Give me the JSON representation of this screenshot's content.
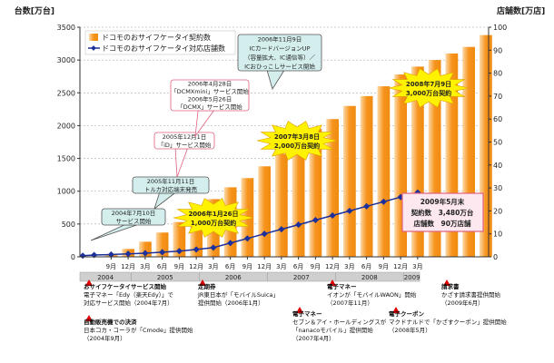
{
  "chart_data": {
    "type": "bar+line",
    "title": "",
    "ylabel_left": "台数[万台]",
    "ylabel_right": "店舗数[万店]",
    "ylim_left": [
      0,
      3500
    ],
    "yticks_left": [
      0,
      500,
      1000,
      1500,
      2000,
      2500,
      3000,
      3500
    ],
    "ylim_right": [
      0,
      100
    ],
    "yticks_right": [
      0,
      10,
      20,
      30,
      40,
      50,
      60,
      70,
      80,
      90,
      100
    ],
    "months": [
      "",
      "",
      "",
      "",
      "",
      "9月",
      "",
      "",
      "12月",
      "",
      "",
      "3月",
      "",
      "",
      "6月",
      "",
      "",
      "9月",
      "",
      "",
      "12月",
      "",
      "",
      "3月",
      "",
      "",
      "6月",
      "",
      "",
      "9月",
      "",
      "",
      "12月",
      "",
      "",
      "3月",
      "",
      "",
      "6月",
      "",
      "",
      "9月",
      "",
      "",
      "12月",
      "",
      "",
      "3月",
      "",
      "",
      "6月",
      "",
      "",
      "9月",
      "",
      "",
      "12月",
      "",
      "",
      "3月",
      "",
      "",
      "6月",
      "",
      "",
      "9月",
      "",
      "",
      "12月",
      "",
      "",
      "3月"
    ],
    "month_tick_labels": [
      {
        "i": 5,
        "t": "9月"
      },
      {
        "i": 8,
        "t": "12月"
      },
      {
        "i": 11,
        "t": "3月"
      },
      {
        "i": 14,
        "t": "6月"
      },
      {
        "i": 17,
        "t": "9月"
      },
      {
        "i": 20,
        "t": "12月"
      },
      {
        "i": 23,
        "t": "3月"
      },
      {
        "i": 26,
        "t": "6月"
      },
      {
        "i": 29,
        "t": "9月"
      },
      {
        "i": 32,
        "t": "12月"
      },
      {
        "i": 35,
        "t": "3月"
      },
      {
        "i": 38,
        "t": "6月"
      },
      {
        "i": 41,
        "t": "9月"
      },
      {
        "i": 44,
        "t": "12月"
      },
      {
        "i": 47,
        "t": "3月"
      },
      {
        "i": 50,
        "t": "6月"
      },
      {
        "i": 53,
        "t": "9月"
      },
      {
        "i": 56,
        "t": "12月"
      },
      {
        "i": 59,
        "t": "3月"
      }
    ],
    "years": [
      {
        "label": "2004",
        "start": 0,
        "end": 9
      },
      {
        "label": "2005",
        "start": 9,
        "end": 21
      },
      {
        "label": "2006",
        "start": 21,
        "end": 33
      },
      {
        "label": "2007",
        "start": 33,
        "end": 45
      },
      {
        "label": "2008",
        "start": 45,
        "end": 57
      },
      {
        "label": "2009",
        "start": 57,
        "end": 60
      }
    ],
    "series": [
      {
        "name": "ドコモのおサイフケータイ契約数",
        "type": "bar",
        "color": "#f7941d",
        "points": [
          [
            5,
            25
          ],
          [
            8,
            120
          ],
          [
            11,
            230
          ],
          [
            14,
            370
          ],
          [
            17,
            530
          ],
          [
            20,
            700
          ],
          [
            23,
            880
          ],
          [
            26,
            1060
          ],
          [
            29,
            1200
          ],
          [
            32,
            1380
          ],
          [
            35,
            1570
          ],
          [
            38,
            1760
          ],
          [
            41,
            1950
          ],
          [
            44,
            2100
          ],
          [
            47,
            2300
          ],
          [
            50,
            2450
          ],
          [
            53,
            2600
          ],
          [
            56,
            2780
          ],
          [
            59,
            2900
          ],
          [
            62,
            3000
          ],
          [
            65,
            3100
          ],
          [
            68,
            3200
          ],
          [
            71,
            3380
          ]
        ]
      },
      {
        "name": "ドコモのおサイフケータイ対応店舗数",
        "type": "line",
        "color": "#1c2f9a",
        "points": [
          [
            0,
            0.5
          ],
          [
            2,
            0.8
          ],
          [
            5,
            1
          ],
          [
            8,
            1.3
          ],
          [
            11,
            1.6
          ],
          [
            14,
            2
          ],
          [
            17,
            2.5
          ],
          [
            20,
            3.2
          ],
          [
            23,
            4
          ],
          [
            26,
            6
          ],
          [
            29,
            8
          ],
          [
            32,
            10
          ],
          [
            35,
            12
          ],
          [
            38,
            14
          ],
          [
            41,
            16
          ],
          [
            44,
            18
          ],
          [
            47,
            20
          ],
          [
            50,
            22
          ],
          [
            53,
            24
          ],
          [
            56,
            26
          ],
          [
            59,
            28
          ]
        ]
      }
    ],
    "callouts": [
      {
        "lines": [
          "2004年7月10日",
          "サービス開始"
        ],
        "style": "teal"
      },
      {
        "lines": [
          "2005年11月11日",
          "トルカ対応端末発売"
        ],
        "style": "teal"
      },
      {
        "lines": [
          "2005年12月1日",
          "「iD」サービス開始"
        ],
        "style": "pink"
      },
      {
        "lines": [
          "2006年4月28日",
          "「DCMXmini」サービス開始",
          "2006年5月26日",
          "「DCMX」サービス開始"
        ],
        "style": "pink"
      },
      {
        "lines": [
          "2006年11月9日",
          "ICカードバージョンUP",
          "（容量拡大、IC通信等）／",
          "ICおひっこしサービス開始"
        ],
        "style": "teal"
      }
    ],
    "bursts": [
      {
        "lines": [
          "2006年1月26日",
          "1,000万台契約"
        ]
      },
      {
        "lines": [
          "2007年3月8日",
          "2,000万台契約"
        ]
      },
      {
        "lines": [
          "2008年7月9日",
          "3,000万台契約"
        ]
      }
    ],
    "summary_box": {
      "lines": [
        "2009年5月末",
        "契約数　3,480万台",
        "店舗数　90万店舗"
      ]
    },
    "events": [
      {
        "lines": [
          "おサイフケータイサービス開始",
          "電子マネー「Edy（楽天Edy）」で",
          "対応サービス開始（2004年7月）"
        ]
      },
      {
        "lines": [
          "自動販売機での決済",
          "日本コカ・コーラが「Cmode」提供開始",
          "（2004年9月）"
        ]
      },
      {
        "lines": [
          "定期券",
          "JR東日本が「モバイルSuica」",
          "提供開始（2006年1月）"
        ]
      },
      {
        "lines": [
          "電子マネー",
          "セブン＆アイ・ホールディングスが",
          "「nanacoモバイル」提供開始",
          "（2007年4月）"
        ]
      },
      {
        "lines": [
          "電子マネー",
          "イオンが「モバイルWAON」開始",
          "（2007年11月）"
        ]
      },
      {
        "lines": [
          "電子クーポン",
          "マクドナルドで「かざすクーポン」提供開始",
          "（2008年5月）"
        ]
      },
      {
        "lines": [
          "請求書",
          "かざす請求書提供開始",
          "（2009年6月）"
        ]
      }
    ]
  }
}
